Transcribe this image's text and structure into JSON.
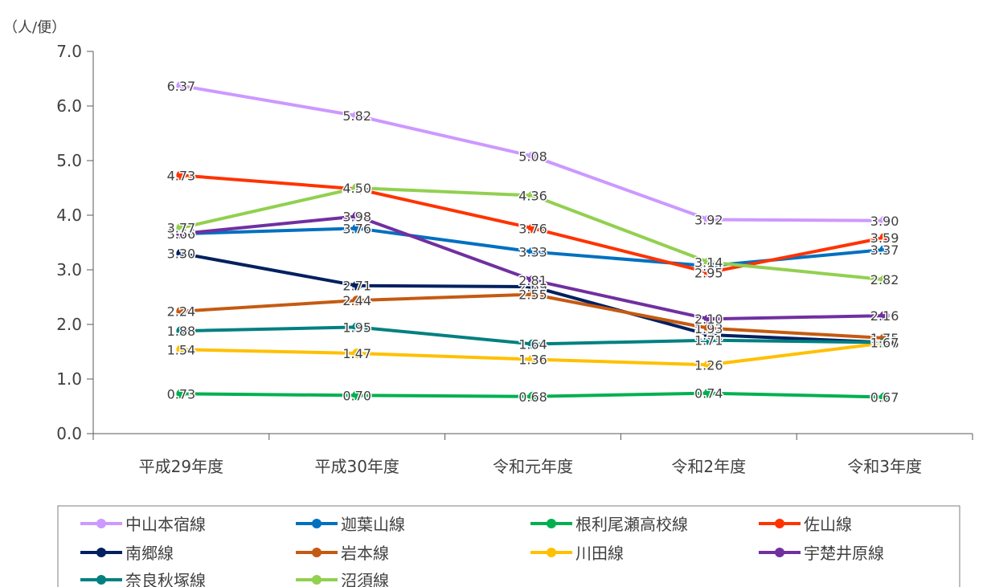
{
  "chart_data": {
    "type": "line",
    "unit_label": "（人/便）",
    "categories": [
      "平成29年度",
      "平成30年度",
      "令和元年度",
      "令和2年度",
      "令和3年度"
    ],
    "ylim": [
      0,
      7
    ],
    "yticks": [
      "0.0",
      "1.0",
      "2.0",
      "3.0",
      "4.0",
      "5.0",
      "6.0",
      "7.0"
    ],
    "grid": false,
    "legend_position": "bottom",
    "series": [
      {
        "name": "中山本宿線",
        "color": "#CC99FF",
        "values": [
          6.37,
          5.82,
          5.08,
          3.92,
          3.9
        ],
        "labels": [
          "6.37",
          "5.82",
          "5.08",
          "3.92",
          "3.90"
        ]
      },
      {
        "name": "迦葉山線",
        "color": "#0070C0",
        "values": [
          3.66,
          3.76,
          3.33,
          3.07,
          3.37
        ],
        "labels": [
          "3.66",
          "3.76",
          "3.33",
          "3.07",
          "3.37"
        ]
      },
      {
        "name": "根利尾瀬高校線",
        "color": "#00B050",
        "values": [
          0.73,
          0.7,
          0.68,
          0.74,
          0.67
        ],
        "labels": [
          "0.73",
          "0.70",
          "0.68",
          "0.74",
          "0.67"
        ]
      },
      {
        "name": "佐山線",
        "color": "#FF3300",
        "values": [
          4.73,
          4.48,
          3.76,
          2.95,
          3.59
        ],
        "labels": [
          "4.73",
          "4.48",
          "3.76",
          "2.95",
          "3.59"
        ]
      },
      {
        "name": "南郷線",
        "color": "#002060",
        "values": [
          3.3,
          2.71,
          2.69,
          1.81,
          1.67
        ],
        "labels": [
          "3.30",
          "2.71",
          "2.69",
          "1.81",
          "1.67"
        ]
      },
      {
        "name": "岩本線",
        "color": "#C55A11",
        "values": [
          2.24,
          2.44,
          2.55,
          1.93,
          1.75
        ],
        "labels": [
          "2.24",
          "2.44",
          "2.55",
          "1.93",
          "1.75"
        ]
      },
      {
        "name": "川田線",
        "color": "#FFC000",
        "values": [
          1.54,
          1.47,
          1.36,
          1.26,
          1.66
        ],
        "labels": [
          "1.54",
          "1.47",
          "1.36",
          "1.26",
          "1.66"
        ]
      },
      {
        "name": "宇楚井原線",
        "color": "#7030A0",
        "values": [
          3.66,
          3.98,
          2.81,
          2.1,
          2.16
        ],
        "labels": [
          "3.66",
          "3.98",
          "2.81",
          "2.10",
          "2.16"
        ]
      },
      {
        "name": "奈良秋塚線",
        "color": "#008080",
        "values": [
          1.88,
          1.95,
          1.64,
          1.71,
          1.67
        ],
        "labels": [
          "1.88",
          "1.95",
          "1.64",
          "1.71",
          "1.67"
        ]
      },
      {
        "name": "沼須線",
        "color": "#92D050",
        "values": [
          3.77,
          4.5,
          4.36,
          3.14,
          2.82
        ],
        "labels": [
          "3.77",
          "4.50",
          "4.36",
          "3.14",
          "2.82"
        ]
      }
    ]
  }
}
